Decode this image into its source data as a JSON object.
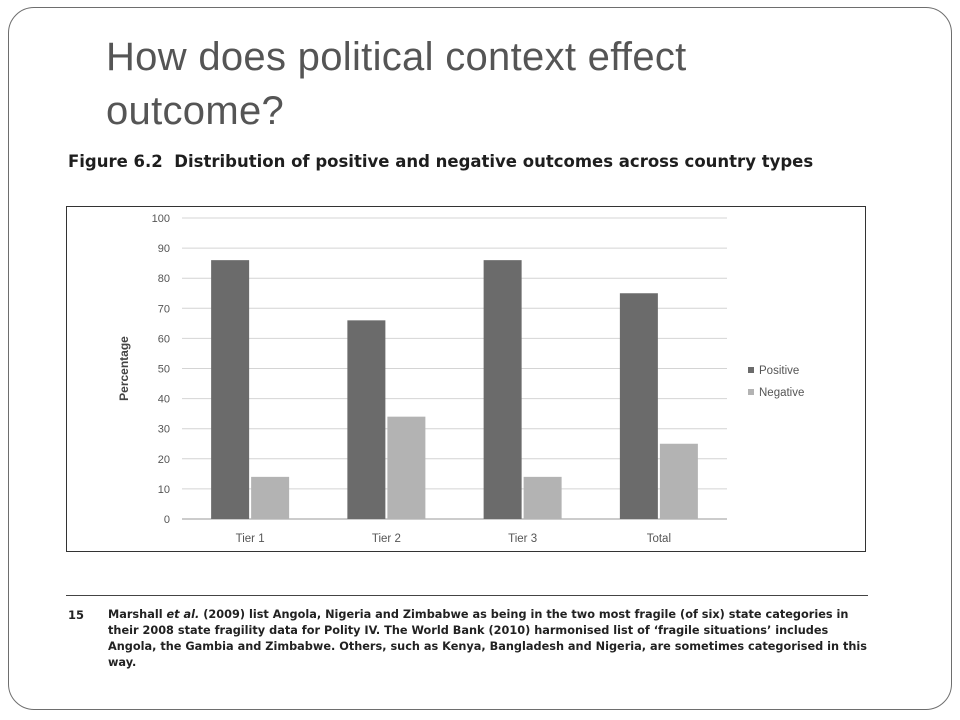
{
  "slide": {
    "title": "How does political context effect outcome?"
  },
  "figure": {
    "label": "Figure 6.2",
    "caption": "Distribution of positive and negative outcomes across country types"
  },
  "chart_data": {
    "type": "bar",
    "categories": [
      "Tier 1",
      "Tier 2",
      "Tier 3",
      "Total"
    ],
    "series": [
      {
        "name": "Positive",
        "values": [
          86,
          66,
          86,
          75
        ],
        "color": "#6b6b6b"
      },
      {
        "name": "Negative",
        "values": [
          14,
          34,
          14,
          25
        ],
        "color": "#b3b3b3"
      }
    ],
    "ylabel": "Percentage",
    "xlabel": "",
    "ylim": [
      0,
      100
    ],
    "yticks": [
      0,
      10,
      20,
      30,
      40,
      50,
      60,
      70,
      80,
      90,
      100
    ],
    "grid": true,
    "legend_position": "right"
  },
  "footnote": {
    "number": "15",
    "author": "Marshall",
    "et_al": "et al.",
    "text_after_et_al": " (2009) list Angola, Nigeria and Zimbabwe as being in the two most fragile (of six) state categories in their 2008 state fragility data for Polity IV. The World Bank (2010) harmonised list of ‘fragile situations’ includes Angola, the Gambia and Zimbabwe. Others, such as Kenya, Bangladesh and Nigeria, are sometimes categorised in this way."
  }
}
